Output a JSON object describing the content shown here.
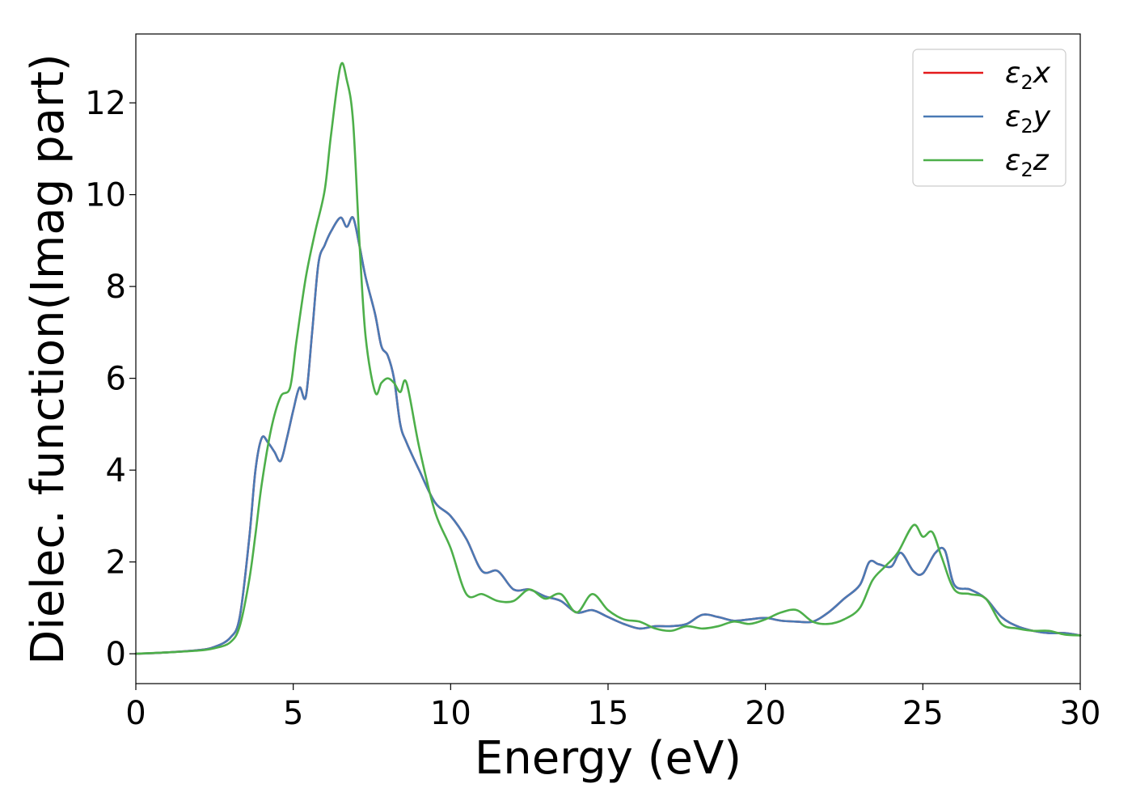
{
  "chart_data": {
    "type": "line",
    "title": "",
    "xlabel": "Energy (eV)",
    "ylabel": "Dielec. function(Imag part)",
    "xlim": [
      0,
      30
    ],
    "ylim": [
      -0.65,
      13.5
    ],
    "xticks": [
      0,
      5,
      10,
      15,
      20,
      25,
      30
    ],
    "yticks": [
      0,
      2,
      4,
      6,
      8,
      10,
      12
    ],
    "grid": false,
    "legend_position": "top-right",
    "series": [
      {
        "name": "ε₂x",
        "label_base": "ε",
        "label_sub": "2",
        "label_var": "x",
        "color": "#e41a1c",
        "x": [
          0,
          1,
          2,
          2.5,
          3,
          3.3,
          3.6,
          3.8,
          4.0,
          4.2,
          4.4,
          4.6,
          4.8,
          5.0,
          5.2,
          5.4,
          5.6,
          5.8,
          6.0,
          6.2,
          6.5,
          6.7,
          6.9,
          7.1,
          7.3,
          7.6,
          7.8,
          8.0,
          8.2,
          8.4,
          8.6,
          9.0,
          9.5,
          10.0,
          10.5,
          11.0,
          11.5,
          12.0,
          12.5,
          13.0,
          13.5,
          14.0,
          14.5,
          15.0,
          15.5,
          16.0,
          16.5,
          17.0,
          17.5,
          18.0,
          18.5,
          19.0,
          19.5,
          20.0,
          20.5,
          21.0,
          21.5,
          22.0,
          22.5,
          23.0,
          23.3,
          23.6,
          24.0,
          24.3,
          24.7,
          25.0,
          25.4,
          25.7,
          26.0,
          26.5,
          27.0,
          27.5,
          28.0,
          28.5,
          29.0,
          29.5,
          30.0
        ],
        "values": [
          0.0,
          0.03,
          0.08,
          0.15,
          0.35,
          0.8,
          2.5,
          4.0,
          4.7,
          4.6,
          4.4,
          4.2,
          4.7,
          5.3,
          5.8,
          5.6,
          7.0,
          8.5,
          8.9,
          9.2,
          9.5,
          9.3,
          9.5,
          8.9,
          8.2,
          7.4,
          6.7,
          6.5,
          6.0,
          5.0,
          4.6,
          4.0,
          3.3,
          3.0,
          2.5,
          1.8,
          1.8,
          1.4,
          1.4,
          1.25,
          1.15,
          0.9,
          0.95,
          0.8,
          0.65,
          0.55,
          0.6,
          0.6,
          0.65,
          0.85,
          0.8,
          0.72,
          0.75,
          0.78,
          0.72,
          0.7,
          0.7,
          0.9,
          1.2,
          1.5,
          2.0,
          1.95,
          1.9,
          2.2,
          1.8,
          1.75,
          2.2,
          2.25,
          1.5,
          1.4,
          1.2,
          0.8,
          0.6,
          0.5,
          0.45,
          0.45,
          0.4
        ]
      },
      {
        "name": "ε₂y",
        "label_base": "ε",
        "label_sub": "2",
        "label_var": "y",
        "color": "#4a7ab5",
        "x": [
          0,
          1,
          2,
          2.5,
          3,
          3.3,
          3.6,
          3.8,
          4.0,
          4.2,
          4.4,
          4.6,
          4.8,
          5.0,
          5.2,
          5.4,
          5.6,
          5.8,
          6.0,
          6.2,
          6.5,
          6.7,
          6.9,
          7.1,
          7.3,
          7.6,
          7.8,
          8.0,
          8.2,
          8.4,
          8.6,
          9.0,
          9.5,
          10.0,
          10.5,
          11.0,
          11.5,
          12.0,
          12.5,
          13.0,
          13.5,
          14.0,
          14.5,
          15.0,
          15.5,
          16.0,
          16.5,
          17.0,
          17.5,
          18.0,
          18.5,
          19.0,
          19.5,
          20.0,
          20.5,
          21.0,
          21.5,
          22.0,
          22.5,
          23.0,
          23.3,
          23.6,
          24.0,
          24.3,
          24.7,
          25.0,
          25.4,
          25.7,
          26.0,
          26.5,
          27.0,
          27.5,
          28.0,
          28.5,
          29.0,
          29.5,
          30.0
        ],
        "values": [
          0.0,
          0.03,
          0.08,
          0.15,
          0.35,
          0.8,
          2.5,
          4.0,
          4.7,
          4.6,
          4.4,
          4.2,
          4.7,
          5.3,
          5.8,
          5.6,
          7.0,
          8.5,
          8.9,
          9.2,
          9.5,
          9.3,
          9.5,
          8.9,
          8.2,
          7.4,
          6.7,
          6.5,
          6.0,
          5.0,
          4.6,
          4.0,
          3.3,
          3.0,
          2.5,
          1.8,
          1.8,
          1.4,
          1.4,
          1.25,
          1.15,
          0.9,
          0.95,
          0.8,
          0.65,
          0.55,
          0.6,
          0.6,
          0.65,
          0.85,
          0.8,
          0.72,
          0.75,
          0.78,
          0.72,
          0.7,
          0.7,
          0.9,
          1.2,
          1.5,
          2.0,
          1.95,
          1.9,
          2.2,
          1.8,
          1.75,
          2.2,
          2.25,
          1.5,
          1.4,
          1.2,
          0.8,
          0.6,
          0.5,
          0.45,
          0.45,
          0.4
        ]
      },
      {
        "name": "ε₂z",
        "label_base": "ε",
        "label_sub": "2",
        "label_var": "z",
        "color": "#4daf4a",
        "x": [
          0,
          1,
          2,
          2.5,
          3,
          3.3,
          3.6,
          3.8,
          4.0,
          4.3,
          4.6,
          4.9,
          5.1,
          5.4,
          5.7,
          6.0,
          6.2,
          6.5,
          6.7,
          6.9,
          7.1,
          7.3,
          7.6,
          7.8,
          8.0,
          8.2,
          8.4,
          8.6,
          9.0,
          9.5,
          10.0,
          10.5,
          11.0,
          11.5,
          12.0,
          12.5,
          13.0,
          13.5,
          14.0,
          14.5,
          15.0,
          15.5,
          16.0,
          16.5,
          17.0,
          17.5,
          18.0,
          18.5,
          19.0,
          19.5,
          20.0,
          20.5,
          21.0,
          21.5,
          22.0,
          22.5,
          23.0,
          23.4,
          23.8,
          24.2,
          24.7,
          25.0,
          25.3,
          25.6,
          26.0,
          26.5,
          27.0,
          27.5,
          28.0,
          28.5,
          29.0,
          29.5,
          30.0
        ],
        "values": [
          0.0,
          0.03,
          0.07,
          0.12,
          0.25,
          0.6,
          1.6,
          2.6,
          3.7,
          4.9,
          5.6,
          5.8,
          6.8,
          8.2,
          9.2,
          10.1,
          11.3,
          12.8,
          12.5,
          11.6,
          9.0,
          6.9,
          5.7,
          5.9,
          6.0,
          5.9,
          5.7,
          5.9,
          4.5,
          3.1,
          2.3,
          1.3,
          1.3,
          1.15,
          1.15,
          1.4,
          1.2,
          1.3,
          0.9,
          1.3,
          0.95,
          0.75,
          0.7,
          0.55,
          0.5,
          0.6,
          0.55,
          0.6,
          0.7,
          0.65,
          0.75,
          0.9,
          0.95,
          0.7,
          0.65,
          0.75,
          1.0,
          1.6,
          1.9,
          2.2,
          2.8,
          2.55,
          2.65,
          2.1,
          1.4,
          1.3,
          1.2,
          0.65,
          0.55,
          0.5,
          0.5,
          0.42,
          0.4
        ]
      }
    ]
  }
}
